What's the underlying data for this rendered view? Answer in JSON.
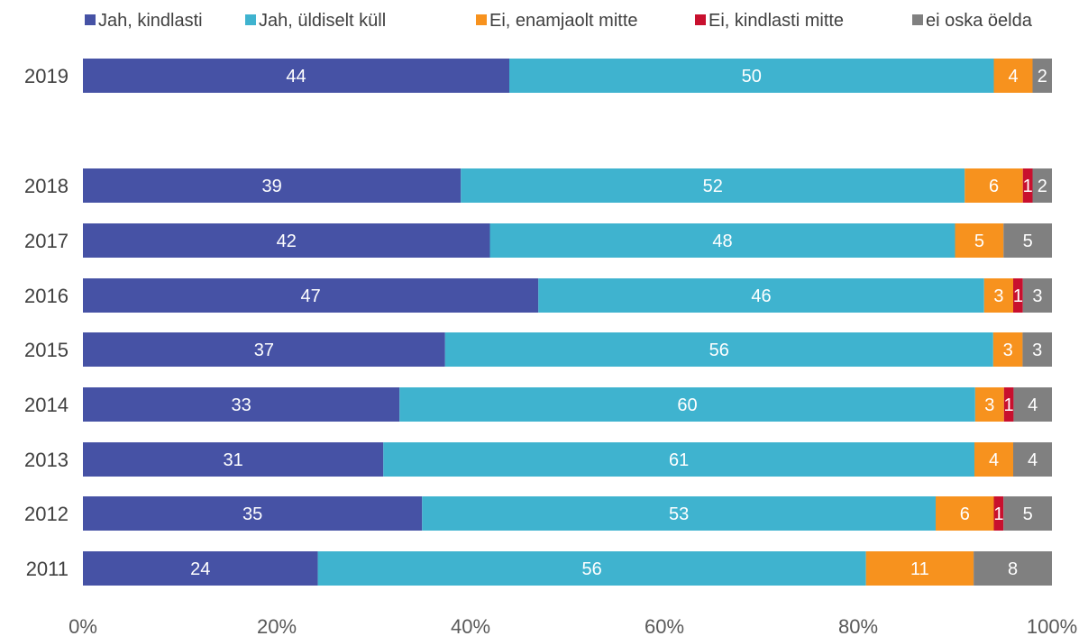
{
  "chart_data": {
    "type": "bar",
    "orientation": "horizontal",
    "stacked": true,
    "normalized": true,
    "categories": [
      "2019",
      "2018",
      "2017",
      "2016",
      "2015",
      "2014",
      "2013",
      "2012",
      "2011"
    ],
    "series": [
      {
        "name": "Jah, kindlasti",
        "color": "#4652A5",
        "values": [
          44,
          39,
          42,
          47,
          37,
          33,
          31,
          35,
          24
        ]
      },
      {
        "name": "Jah, üldiselt küll",
        "color": "#3FB3CF",
        "values": [
          50,
          52,
          48,
          46,
          56,
          60,
          61,
          53,
          56
        ]
      },
      {
        "name": "Ei, enamjaolt mitte",
        "color": "#F7921E",
        "values": [
          4,
          6,
          5,
          3,
          3,
          3,
          4,
          6,
          11
        ]
      },
      {
        "name": "Ei, kindlasti mitte",
        "color": "#C8102E",
        "values": [
          0,
          1,
          0,
          1,
          0,
          1,
          0,
          1,
          0
        ]
      },
      {
        "name": "ei oska öelda",
        "color": "#808080",
        "values": [
          2,
          2,
          5,
          3,
          3,
          4,
          4,
          5,
          8
        ]
      }
    ],
    "x_ticks": [
      "0%",
      "20%",
      "40%",
      "60%",
      "80%",
      "100%"
    ],
    "xlim": [
      0,
      100
    ],
    "legend": "top",
    "grid": false,
    "title": "",
    "xlabel": "",
    "ylabel": ""
  }
}
